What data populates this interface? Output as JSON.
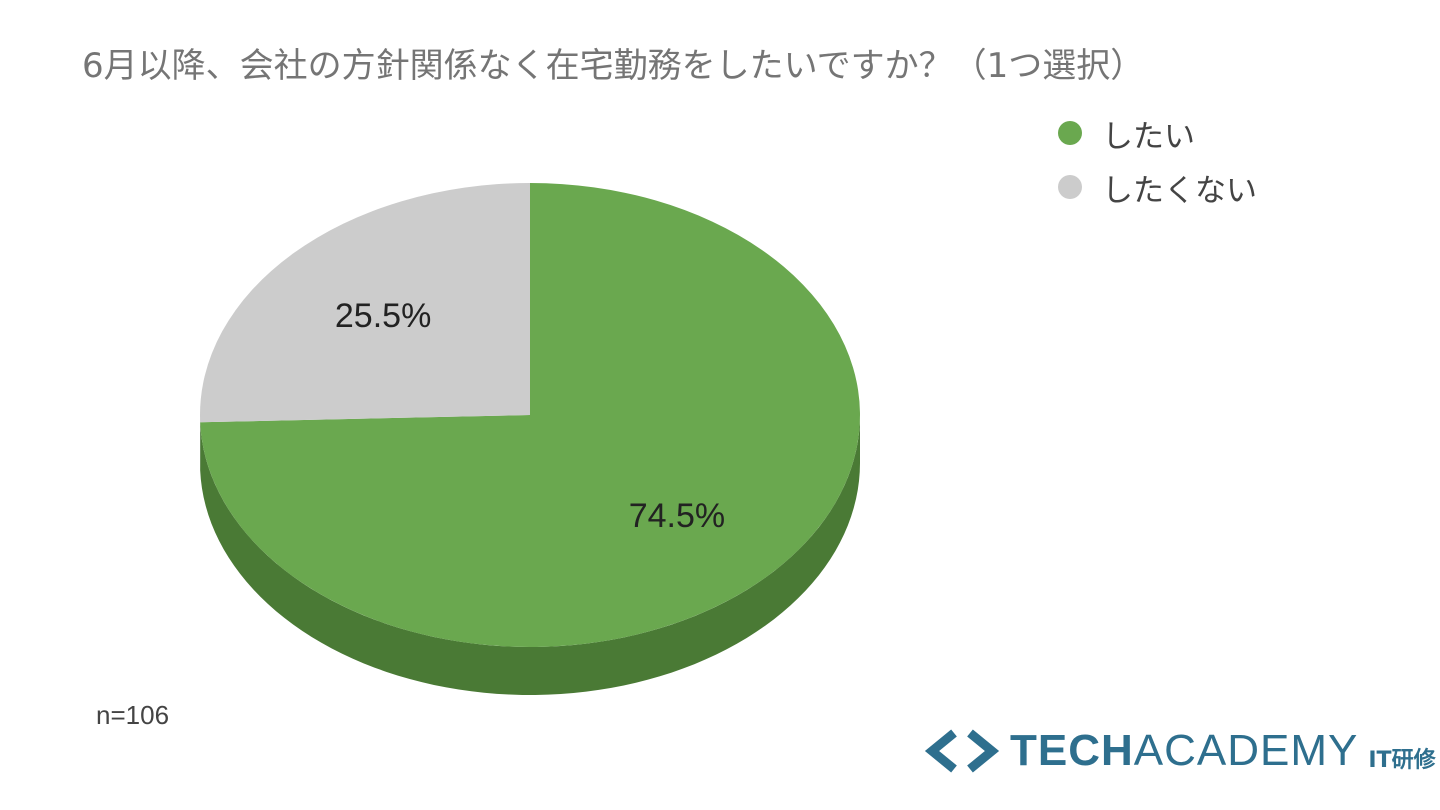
{
  "chart_data": {
    "type": "pie",
    "title": "6月以降、会社の方針関係なく在宅勤務をしたいですか？（1つ選択）",
    "categories": [
      "したい",
      "したくない"
    ],
    "values": [
      74.5,
      25.5
    ],
    "value_labels": [
      "74.5%",
      "25.5%"
    ],
    "colors": [
      "#6aa84f",
      "#cccccc"
    ],
    "side_colors": [
      "#4a7a35",
      "#a0a0a0"
    ],
    "style": "3d",
    "legend_position": "top-right",
    "note": "n=106"
  },
  "branding": {
    "logo_word_bold": "TECH",
    "logo_word_light": "ACADEMY",
    "logo_suffix": "IT研修",
    "logo_color": "#2e6f8e",
    "logo_icon": "chevron-brackets-icon"
  }
}
